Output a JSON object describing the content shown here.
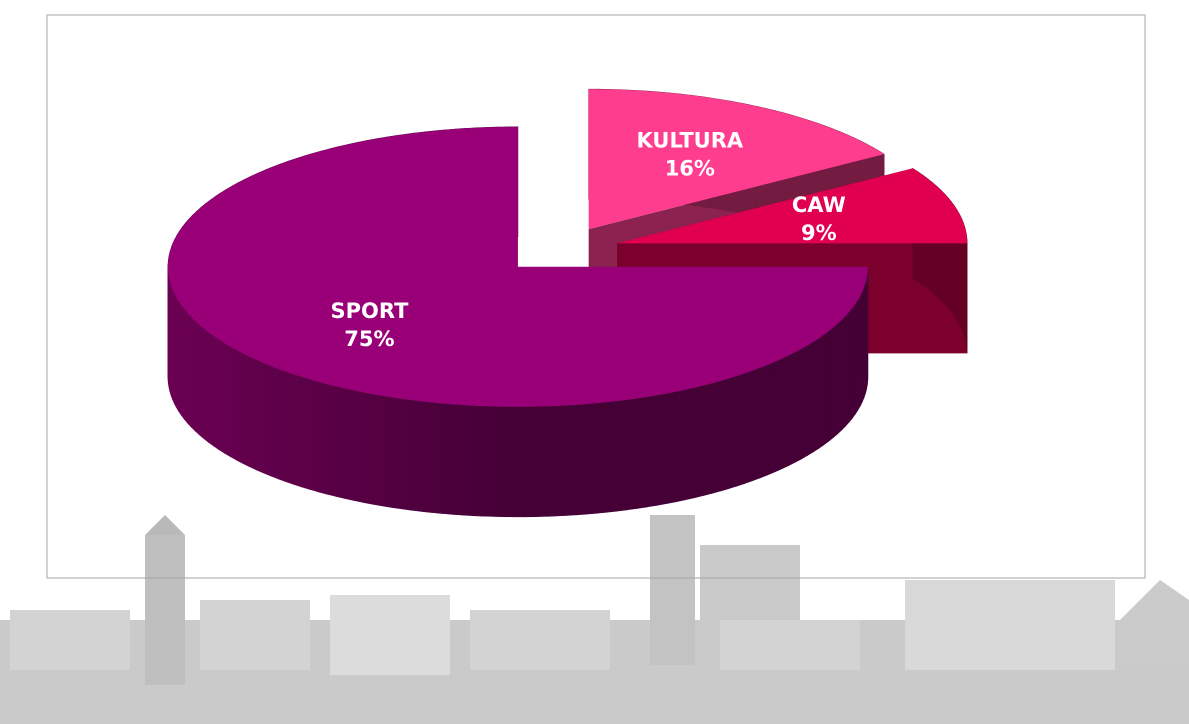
{
  "chart_data": {
    "type": "pie3d",
    "categories": [
      "SPORT",
      "KULTURA",
      "CAW"
    ],
    "values": [
      75,
      16,
      9
    ],
    "value_labels": [
      "75%",
      "16%",
      "9%"
    ],
    "colors": [
      "#990077",
      "#ff3d8f",
      "#e0004f"
    ]
  }
}
